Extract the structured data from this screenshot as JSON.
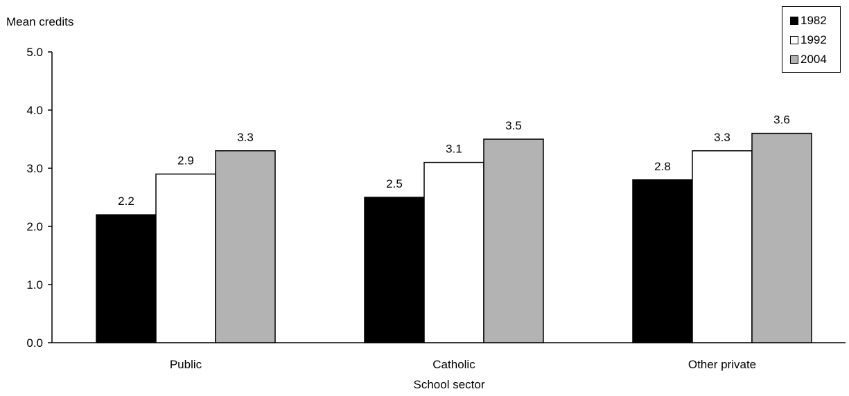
{
  "chart_data": {
    "type": "bar",
    "ylabel": "Mean credits",
    "xlabel": "School sector",
    "categories": [
      "Public",
      "Catholic",
      "Other private"
    ],
    "series": [
      {
        "name": "1982",
        "color": "#000000",
        "values": [
          2.2,
          2.5,
          2.8
        ],
        "labels": [
          "2.2",
          "2.5",
          "2.8"
        ]
      },
      {
        "name": "1992",
        "color": "#ffffff",
        "values": [
          2.9,
          3.1,
          3.3
        ],
        "labels": [
          "2.9",
          "3.1",
          "3.3"
        ]
      },
      {
        "name": "2004",
        "color": "#b3b3b3",
        "values": [
          3.3,
          3.5,
          3.6
        ],
        "labels": [
          "3.3",
          "3.5",
          "3.6"
        ]
      }
    ],
    "ylim": [
      0,
      5
    ],
    "yticks": [
      "0.0",
      "1.0",
      "2.0",
      "3.0",
      "4.0",
      "5.0"
    ],
    "grid": false,
    "legend_position": "top-right"
  }
}
